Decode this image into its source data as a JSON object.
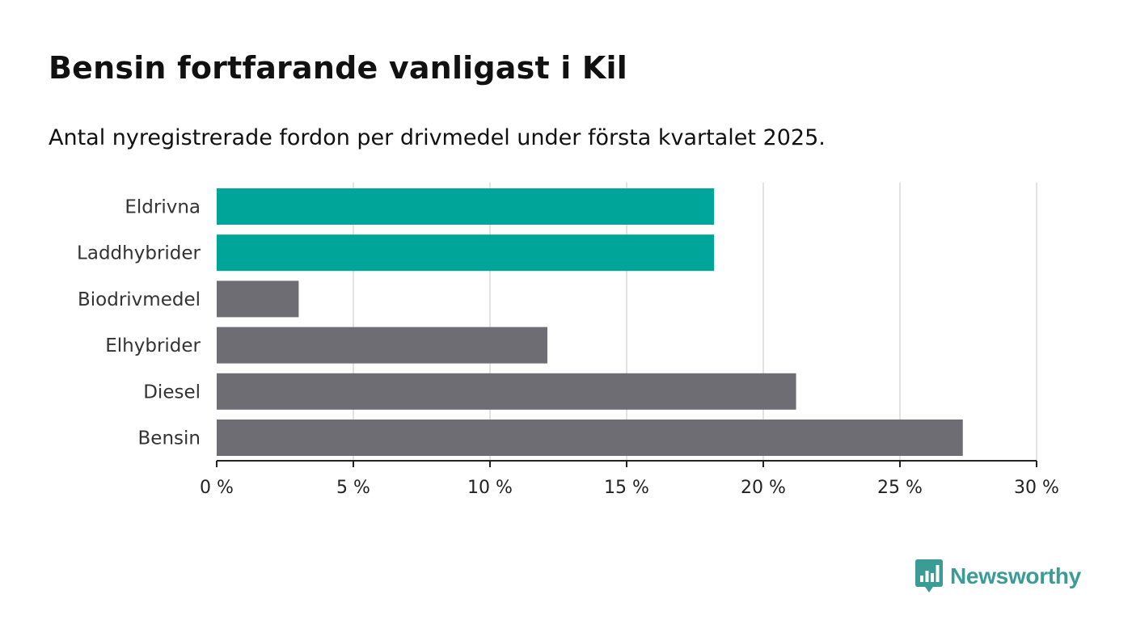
{
  "title": "Bensin fortfarande vanligast i Kil",
  "subtitle": "Antal nyregistrerade fordon per drivmedel under första kvartalet 2025.",
  "logo": {
    "text": "Newsworthy",
    "icon": "newsworthy-logo-icon",
    "color": "#3a9c95"
  },
  "colors": {
    "highlight": "#00a59a",
    "default": "#6e6d74",
    "grid": "#d9d9d9",
    "axis": "#222222"
  },
  "chart_data": {
    "type": "bar",
    "orientation": "horizontal",
    "categories": [
      "Eldrivna",
      "Laddhybrider",
      "Biodrivmedel",
      "Elhybrider",
      "Diesel",
      "Bensin"
    ],
    "values": [
      18.2,
      18.2,
      3.0,
      12.1,
      21.2,
      27.3
    ],
    "highlighted": [
      true,
      true,
      false,
      false,
      false,
      false
    ],
    "xlim": [
      0,
      30
    ],
    "xticks": [
      0,
      5,
      10,
      15,
      20,
      25,
      30
    ],
    "xtick_labels": [
      "0 %",
      "5 %",
      "10 %",
      "15 %",
      "20 %",
      "25 %",
      "30 %"
    ],
    "title": "Bensin fortfarande vanligast i Kil",
    "subtitle": "Antal nyregistrerade fordon per drivmedel under första kvartalet 2025.",
    "xlabel": "",
    "ylabel": "",
    "grid": true
  }
}
